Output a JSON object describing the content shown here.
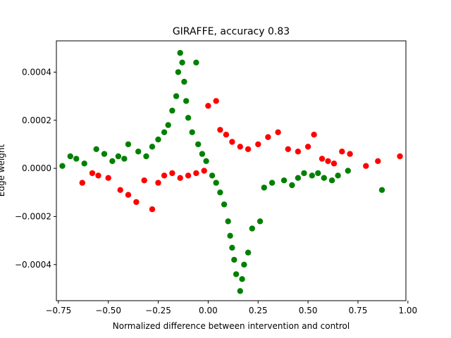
{
  "chart_data": {
    "type": "scatter",
    "title": "GIRAFFE, accuracy 0.83",
    "xlabel": "Normalized difference between intervention and control",
    "ylabel": "Edge weight",
    "xlim": [
      -0.76,
      0.99
    ],
    "ylim": [
      -0.00055,
      0.00053
    ],
    "x_ticks": [
      -0.75,
      -0.5,
      -0.25,
      0.0,
      0.25,
      0.5,
      0.75,
      1.0
    ],
    "x_tick_labels": [
      "−0.75",
      "−0.50",
      "−0.25",
      "0.00",
      "0.25",
      "0.50",
      "0.75",
      "1.00"
    ],
    "y_ticks": [
      -0.0004,
      -0.0002,
      0.0,
      0.0002,
      0.0004
    ],
    "y_tick_labels": [
      "−0.0004",
      "−0.0002",
      "0.0000",
      "0.0002",
      "0.0004"
    ],
    "grid": false,
    "legend": "none",
    "colors": {
      "correct": "#008000",
      "incorrect": "#ff0000"
    },
    "series": [
      {
        "color": "#008000",
        "points": [
          [
            -0.73,
            1e-05
          ],
          [
            -0.69,
            5e-05
          ],
          [
            -0.66,
            4e-05
          ],
          [
            -0.62,
            2e-05
          ],
          [
            -0.56,
            8e-05
          ],
          [
            -0.52,
            6e-05
          ],
          [
            -0.48,
            3e-05
          ],
          [
            -0.45,
            5e-05
          ],
          [
            -0.42,
            4e-05
          ],
          [
            -0.4,
            0.0001
          ],
          [
            -0.35,
            7e-05
          ],
          [
            -0.31,
            5e-05
          ],
          [
            -0.28,
            9e-05
          ],
          [
            -0.25,
            0.00012
          ],
          [
            -0.22,
            0.00015
          ],
          [
            -0.2,
            0.00018
          ],
          [
            -0.18,
            0.00024
          ],
          [
            -0.16,
            0.0003
          ],
          [
            -0.15,
            0.0004
          ],
          [
            -0.14,
            0.00048
          ],
          [
            -0.13,
            0.00044
          ],
          [
            -0.12,
            0.00036
          ],
          [
            -0.11,
            0.00028
          ],
          [
            -0.1,
            0.00021
          ],
          [
            -0.08,
            0.00015
          ],
          [
            -0.06,
            0.00044
          ],
          [
            -0.05,
            0.0001
          ],
          [
            -0.03,
            6e-05
          ],
          [
            -0.01,
            3e-05
          ],
          [
            0.02,
            -3e-05
          ],
          [
            0.04,
            -6e-05
          ],
          [
            0.06,
            -0.0001
          ],
          [
            0.08,
            -0.00015
          ],
          [
            0.1,
            -0.00022
          ],
          [
            0.11,
            -0.00028
          ],
          [
            0.12,
            -0.00033
          ],
          [
            0.13,
            -0.00038
          ],
          [
            0.14,
            -0.00044
          ],
          [
            0.16,
            -0.00051
          ],
          [
            0.17,
            -0.00046
          ],
          [
            0.18,
            -0.0004
          ],
          [
            0.2,
            -0.00035
          ],
          [
            0.22,
            -0.00025
          ],
          [
            0.26,
            -0.00022
          ],
          [
            0.28,
            -8e-05
          ],
          [
            0.32,
            -6e-05
          ],
          [
            0.38,
            -5e-05
          ],
          [
            0.42,
            -7e-05
          ],
          [
            0.45,
            -4e-05
          ],
          [
            0.48,
            -2e-05
          ],
          [
            0.52,
            -3e-05
          ],
          [
            0.55,
            -2e-05
          ],
          [
            0.58,
            -4e-05
          ],
          [
            0.62,
            -5e-05
          ],
          [
            0.65,
            -3e-05
          ],
          [
            0.7,
            -1e-05
          ],
          [
            0.87,
            -9e-05
          ]
        ]
      },
      {
        "color": "#ff0000",
        "points": [
          [
            -0.63,
            -6e-05
          ],
          [
            -0.58,
            -2e-05
          ],
          [
            -0.55,
            -3e-05
          ],
          [
            -0.5,
            -4e-05
          ],
          [
            -0.44,
            -9e-05
          ],
          [
            -0.4,
            -0.00011
          ],
          [
            -0.36,
            -0.00014
          ],
          [
            -0.32,
            -5e-05
          ],
          [
            -0.28,
            -0.00017
          ],
          [
            -0.25,
            -6e-05
          ],
          [
            -0.22,
            -3e-05
          ],
          [
            -0.18,
            -2e-05
          ],
          [
            -0.14,
            -4e-05
          ],
          [
            -0.1,
            -3e-05
          ],
          [
            -0.06,
            -2e-05
          ],
          [
            -0.02,
            -1e-05
          ],
          [
            0.0,
            0.00026
          ],
          [
            0.04,
            0.00028
          ],
          [
            0.06,
            0.00016
          ],
          [
            0.09,
            0.00014
          ],
          [
            0.12,
            0.00011
          ],
          [
            0.16,
            9e-05
          ],
          [
            0.2,
            8e-05
          ],
          [
            0.25,
            0.0001
          ],
          [
            0.3,
            0.00013
          ],
          [
            0.35,
            0.00015
          ],
          [
            0.4,
            8e-05
          ],
          [
            0.45,
            7e-05
          ],
          [
            0.5,
            9e-05
          ],
          [
            0.53,
            0.00014
          ],
          [
            0.57,
            4e-05
          ],
          [
            0.6,
            3e-05
          ],
          [
            0.63,
            2e-05
          ],
          [
            0.67,
            7e-05
          ],
          [
            0.71,
            6e-05
          ],
          [
            0.79,
            1e-05
          ],
          [
            0.85,
            3e-05
          ],
          [
            0.96,
            5e-05
          ]
        ]
      }
    ]
  }
}
